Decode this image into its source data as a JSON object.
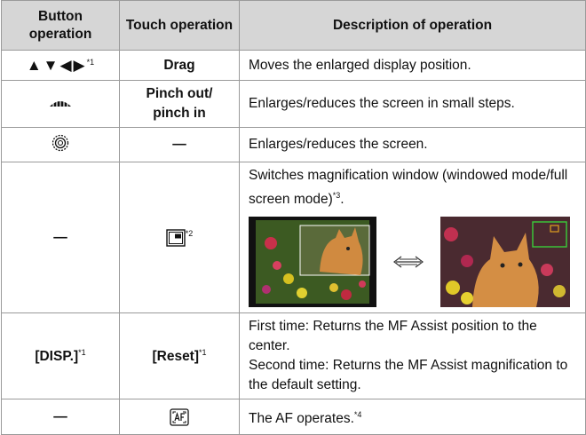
{
  "table": {
    "header": [
      "Button operation",
      "Touch operation",
      "Description of operation"
    ],
    "rows": [
      {
        "button": "▲▼◀▶",
        "button_note": "*1",
        "touch": "Drag",
        "description": "Moves the enlarged display position."
      },
      {
        "touch": [
          "Pinch out/",
          "pinch in"
        ],
        "description": "Enlarges/reduces the screen in small steps."
      },
      {
        "touch": "—",
        "description": "Enlarges/reduces the screen."
      },
      {
        "button": "—",
        "touch_note": "*2",
        "description": "Switches magnification window (windowed mode/full screen mode)",
        "description_note": "*3",
        "description_tail": "."
      },
      {
        "button": "[DISP.]",
        "button_note": "*1",
        "touch": "[Reset]",
        "touch_note": "*1",
        "description": [
          "First time: Returns the MF Assist position to the center.",
          "Second time: Returns the MF Assist magnification to the default setting."
        ]
      },
      {
        "button": "—",
        "description": "The AF operates.",
        "description_note": "*4"
      }
    ]
  }
}
